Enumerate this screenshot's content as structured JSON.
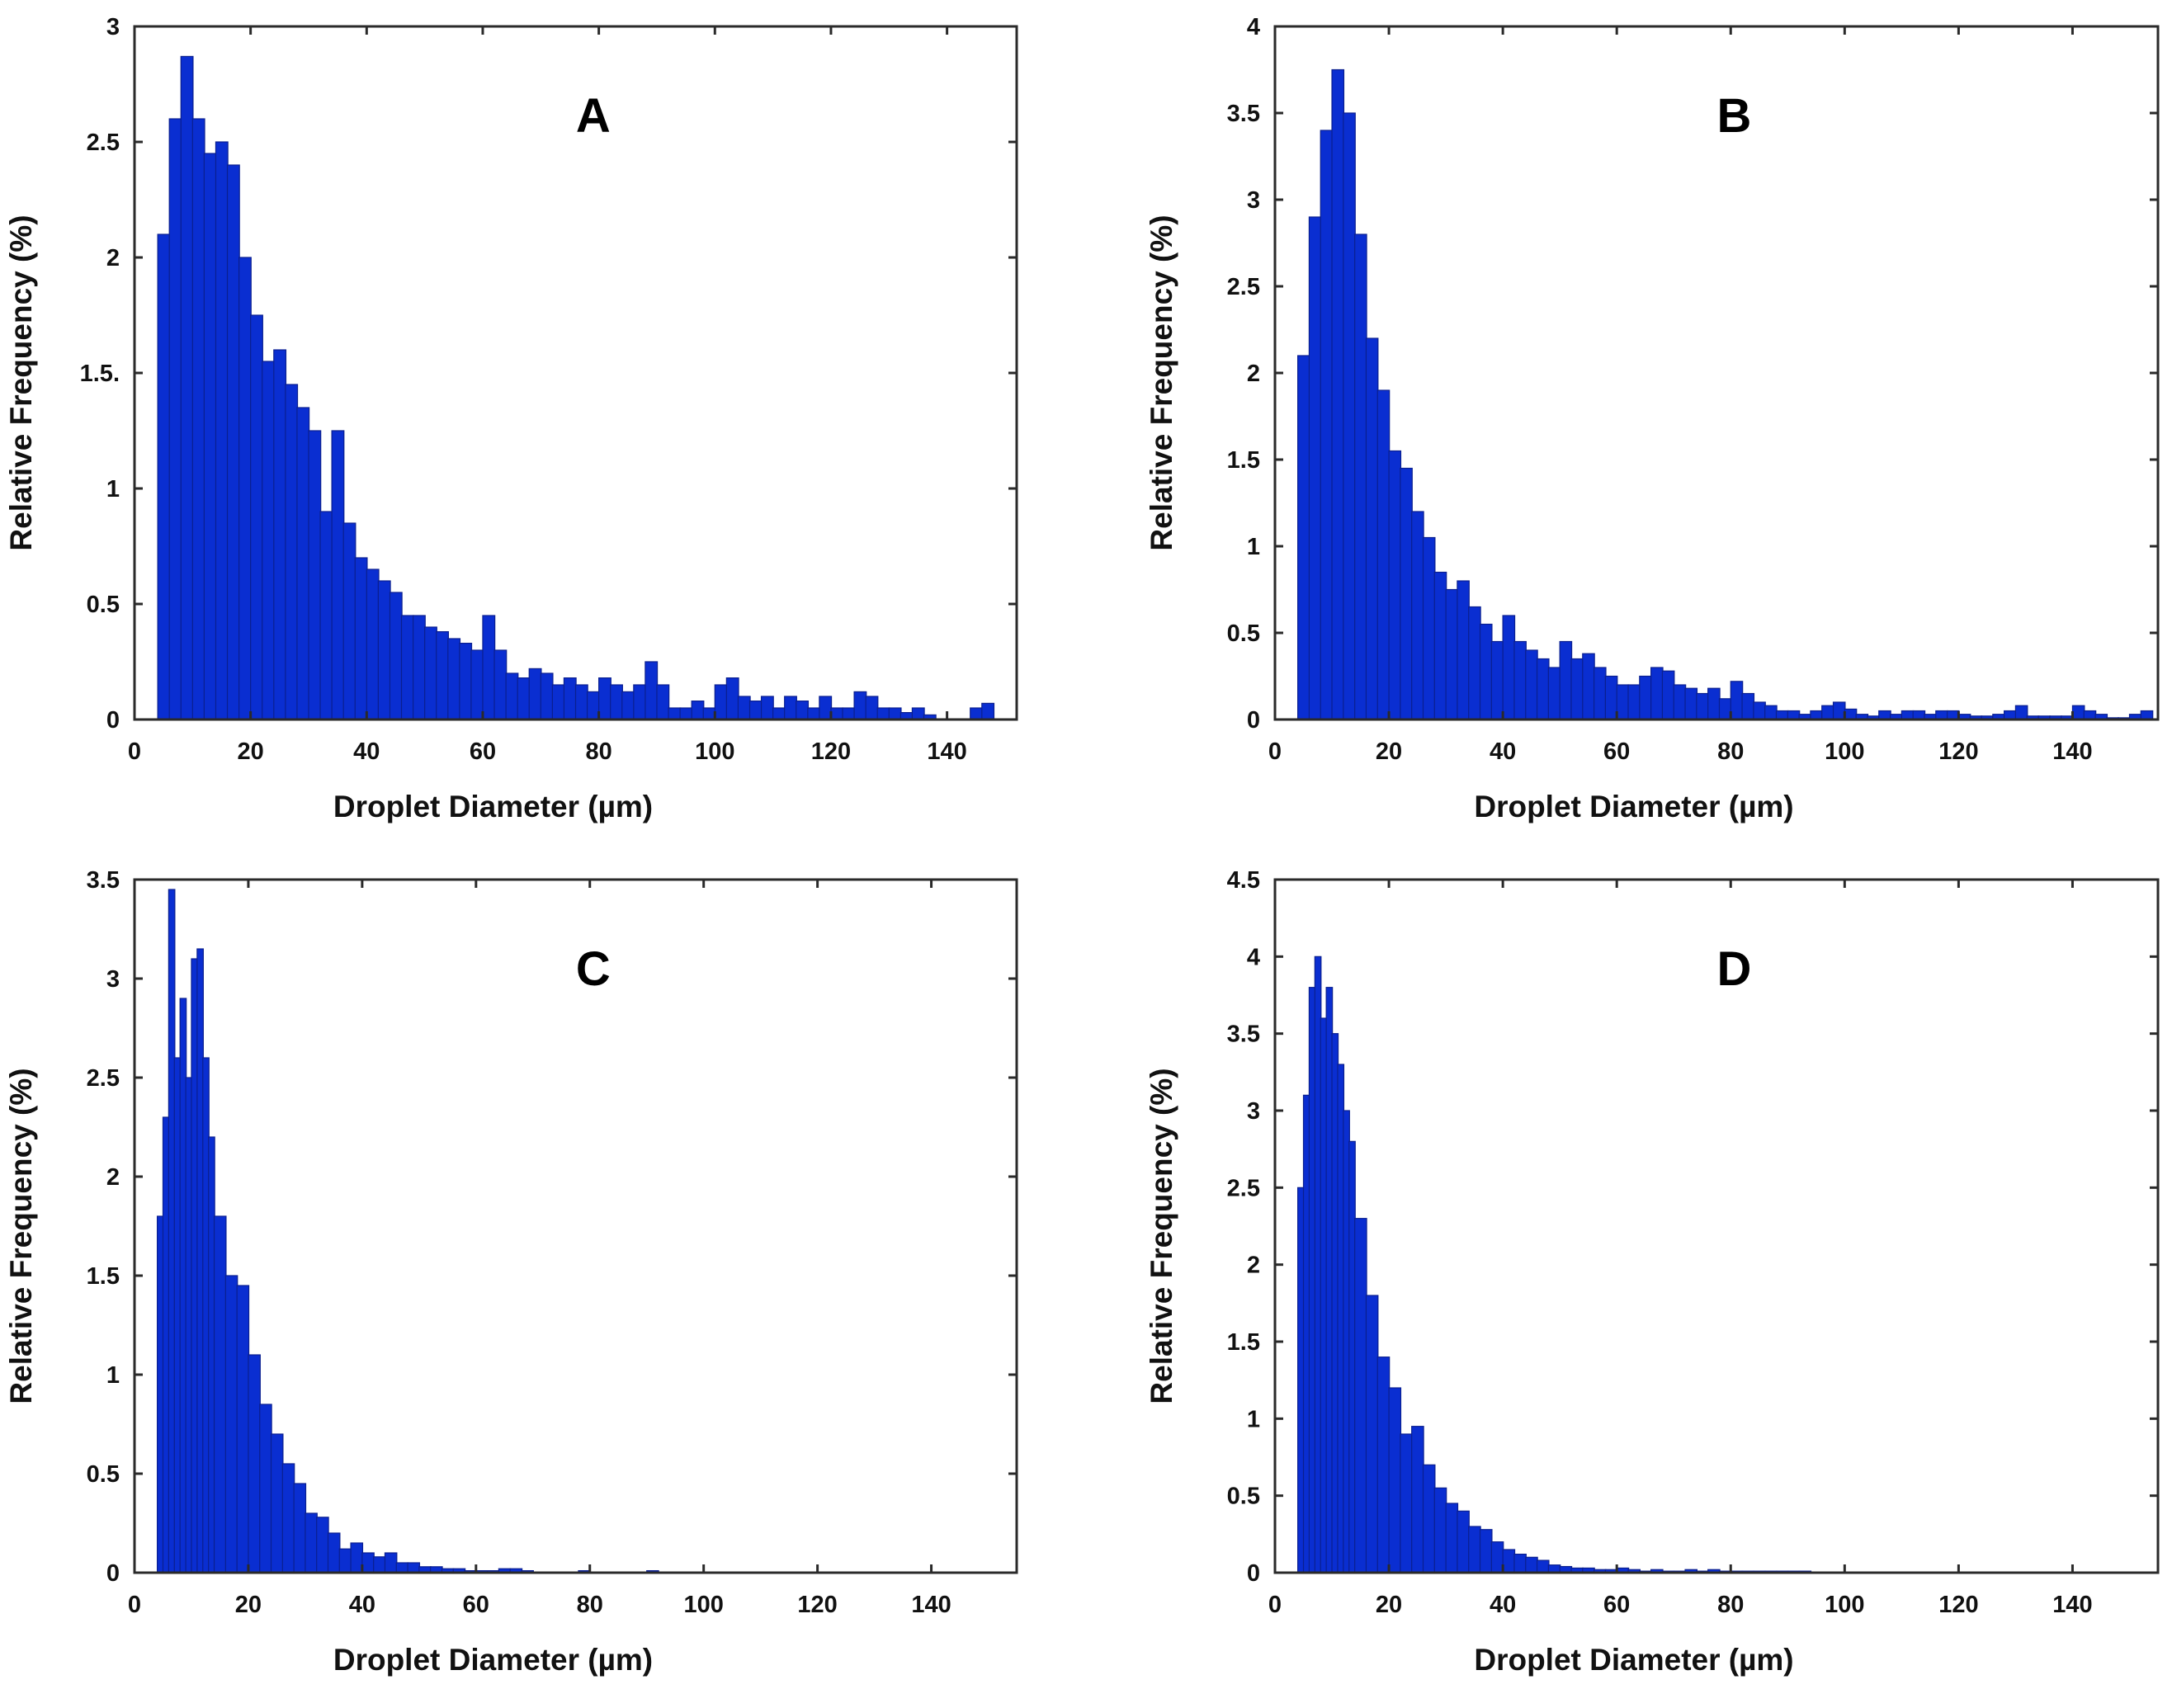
{
  "colors": {
    "bars": "#0a2ed1",
    "bar_outline": "#0a1f8f",
    "axis": "#2a2a2a",
    "text": "#111111"
  },
  "chart_data": [
    {
      "type": "bar",
      "panel_label": "A",
      "xlabel": "Droplet Diameter (µm)",
      "ylabel": "Relative Frequency (%)",
      "xlim": [
        0,
        152
      ],
      "ylim": [
        0,
        3
      ],
      "xticks": [
        0,
        20,
        40,
        60,
        80,
        100,
        120,
        140
      ],
      "xtick_labels": [
        "0",
        "20",
        "40",
        "60",
        "80",
        "100",
        "120",
        "140"
      ],
      "yticks": [
        0,
        0.5,
        1,
        1.5,
        2,
        2.5,
        3
      ],
      "ytick_labels": [
        "0",
        "0.5",
        "1",
        "1.5.",
        "2",
        "2.5",
        "3"
      ],
      "grid": false,
      "x": [
        4,
        6,
        8,
        10,
        12,
        14,
        16,
        18,
        20,
        22,
        24,
        26,
        28,
        30,
        32,
        34,
        36,
        38,
        40,
        42,
        44,
        46,
        48,
        50,
        52,
        54,
        56,
        58,
        60,
        62,
        64,
        66,
        68,
        70,
        72,
        74,
        76,
        78,
        80,
        82,
        84,
        86,
        88,
        90,
        92,
        94,
        96,
        98,
        100,
        102,
        104,
        106,
        108,
        110,
        112,
        114,
        116,
        118,
        120,
        122,
        124,
        126,
        128,
        130,
        132,
        134,
        136,
        138,
        140,
        142,
        144,
        146
      ],
      "values": [
        2.1,
        2.6,
        2.87,
        2.6,
        2.45,
        2.5,
        2.4,
        2.0,
        1.75,
        1.55,
        1.6,
        1.45,
        1.35,
        1.25,
        0.9,
        1.25,
        0.85,
        0.7,
        0.65,
        0.6,
        0.55,
        0.45,
        0.45,
        0.4,
        0.38,
        0.35,
        0.33,
        0.3,
        0.45,
        0.3,
        0.2,
        0.18,
        0.22,
        0.2,
        0.15,
        0.18,
        0.15,
        0.12,
        0.18,
        0.15,
        0.12,
        0.15,
        0.25,
        0.15,
        0.05,
        0.05,
        0.08,
        0.05,
        0.15,
        0.18,
        0.1,
        0.08,
        0.1,
        0.05,
        0.1,
        0.08,
        0.05,
        0.1,
        0.05,
        0.05,
        0.12,
        0.1,
        0.05,
        0.05,
        0.03,
        0.05,
        0.02,
        0.0,
        0.0,
        0.0,
        0.05,
        0.07
      ]
    },
    {
      "type": "bar",
      "panel_label": "B",
      "xlabel": "Droplet Diameter (µm)",
      "ylabel": "Relative Frequency (%)",
      "xlim": [
        0,
        155
      ],
      "ylim": [
        0,
        4
      ],
      "xticks": [
        0,
        20,
        40,
        60,
        80,
        100,
        120,
        140
      ],
      "xtick_labels": [
        "0",
        "20",
        "40",
        "60",
        "80",
        "100",
        "120",
        "140"
      ],
      "yticks": [
        0,
        0.5,
        1,
        1.5,
        2,
        2.5,
        3,
        3.5,
        4
      ],
      "ytick_labels": [
        "0",
        "0.5",
        "1",
        "1.5",
        "2",
        "2.5",
        "3",
        "3.5",
        "4"
      ],
      "grid": false,
      "x": [
        4,
        6,
        8,
        10,
        12,
        14,
        16,
        18,
        20,
        22,
        24,
        26,
        28,
        30,
        32,
        34,
        36,
        38,
        40,
        42,
        44,
        46,
        48,
        50,
        52,
        54,
        56,
        58,
        60,
        62,
        64,
        66,
        68,
        70,
        72,
        74,
        76,
        78,
        80,
        82,
        84,
        86,
        88,
        90,
        92,
        94,
        96,
        98,
        100,
        102,
        104,
        106,
        108,
        110,
        112,
        114,
        116,
        118,
        120,
        122,
        124,
        126,
        128,
        130,
        132,
        134,
        136,
        138,
        140,
        142,
        144,
        146,
        148,
        150,
        152
      ],
      "values": [
        2.1,
        2.9,
        3.4,
        3.75,
        3.5,
        2.8,
        2.2,
        1.9,
        1.55,
        1.45,
        1.2,
        1.05,
        0.85,
        0.75,
        0.8,
        0.65,
        0.55,
        0.45,
        0.6,
        0.45,
        0.4,
        0.35,
        0.3,
        0.45,
        0.35,
        0.38,
        0.3,
        0.25,
        0.2,
        0.2,
        0.25,
        0.3,
        0.28,
        0.2,
        0.18,
        0.15,
        0.18,
        0.12,
        0.22,
        0.15,
        0.1,
        0.08,
        0.05,
        0.05,
        0.03,
        0.05,
        0.08,
        0.1,
        0.06,
        0.03,
        0.02,
        0.05,
        0.03,
        0.05,
        0.05,
        0.03,
        0.05,
        0.05,
        0.03,
        0.02,
        0.02,
        0.03,
        0.05,
        0.08,
        0.02,
        0.02,
        0.02,
        0.02,
        0.08,
        0.05,
        0.03,
        0.01,
        0.01,
        0.03,
        0.05
      ]
    },
    {
      "type": "bar",
      "panel_label": "C",
      "xlabel": "Droplet Diameter (µm)",
      "ylabel": "Relative Frequency (%)",
      "xlim": [
        0,
        155
      ],
      "ylim": [
        0,
        3.5
      ],
      "xticks": [
        0,
        20,
        40,
        60,
        80,
        100,
        120,
        140
      ],
      "xtick_labels": [
        "0",
        "20",
        "40",
        "60",
        "80",
        "100",
        "120",
        "140"
      ],
      "yticks": [
        0,
        0.5,
        1,
        1.5,
        2,
        2.5,
        3,
        3.5
      ],
      "ytick_labels": [
        "0",
        "0.5",
        "1",
        "1.5",
        "2",
        "2.5",
        "3",
        "3.5"
      ],
      "grid": false,
      "x": [
        4,
        5,
        6,
        7,
        8,
        9,
        10,
        11,
        12,
        13,
        14,
        16,
        18,
        20,
        22,
        24,
        26,
        28,
        30,
        32,
        34,
        36,
        38,
        40,
        42,
        44,
        46,
        48,
        50,
        52,
        54,
        56,
        58,
        60,
        62,
        64,
        66,
        68,
        70,
        72,
        74,
        76,
        78,
        80,
        82,
        84,
        86,
        88,
        90,
        92
      ],
      "values": [
        1.8,
        2.3,
        3.45,
        2.6,
        2.9,
        2.5,
        3.1,
        3.15,
        2.6,
        2.2,
        1.8,
        1.5,
        1.45,
        1.1,
        0.85,
        0.7,
        0.55,
        0.45,
        0.3,
        0.28,
        0.2,
        0.12,
        0.15,
        0.1,
        0.08,
        0.1,
        0.05,
        0.05,
        0.03,
        0.03,
        0.02,
        0.02,
        0.01,
        0.01,
        0.01,
        0.02,
        0.02,
        0.01,
        0.0,
        0.0,
        0.0,
        0.0,
        0.01,
        0.0,
        0.0,
        0.0,
        0.0,
        0.0,
        0.01,
        0.0
      ]
    },
    {
      "type": "bar",
      "panel_label": "D",
      "xlabel": "Droplet Diameter (µm)",
      "ylabel": "Relative Frequency (%)",
      "xlim": [
        0,
        155
      ],
      "ylim": [
        0,
        4.5
      ],
      "xticks": [
        0,
        20,
        40,
        60,
        80,
        100,
        120,
        140
      ],
      "xtick_labels": [
        "0",
        "20",
        "40",
        "60",
        "80",
        "100",
        "120",
        "140"
      ],
      "yticks": [
        0,
        0.5,
        1,
        1.5,
        2,
        2.5,
        3,
        3.5,
        4,
        4.5
      ],
      "ytick_labels": [
        "0",
        "0.5",
        "1",
        "1.5",
        "2",
        "2.5",
        "3",
        "3.5",
        "4",
        "4.5"
      ],
      "grid": false,
      "x": [
        4,
        5,
        6,
        7,
        8,
        9,
        10,
        11,
        12,
        13,
        14,
        16,
        18,
        20,
        22,
        24,
        26,
        28,
        30,
        32,
        34,
        36,
        38,
        40,
        42,
        44,
        46,
        48,
        50,
        52,
        54,
        56,
        58,
        60,
        62,
        64,
        66,
        68,
        70,
        72,
        74,
        76,
        78,
        80,
        82,
        84,
        86,
        88,
        90,
        92,
        94,
        96,
        98,
        100
      ],
      "values": [
        2.5,
        3.1,
        3.8,
        4.0,
        3.6,
        3.8,
        3.5,
        3.3,
        3.0,
        2.8,
        2.3,
        1.8,
        1.4,
        1.2,
        0.9,
        0.95,
        0.7,
        0.55,
        0.45,
        0.4,
        0.3,
        0.28,
        0.2,
        0.15,
        0.12,
        0.1,
        0.08,
        0.05,
        0.04,
        0.03,
        0.03,
        0.02,
        0.02,
        0.03,
        0.02,
        0.01,
        0.02,
        0.01,
        0.01,
        0.02,
        0.01,
        0.02,
        0.01,
        0.01,
        0.01,
        0.01,
        0.01,
        0.01,
        0.01,
        0.01,
        0.0,
        0.0,
        0.0,
        0.0
      ]
    }
  ]
}
